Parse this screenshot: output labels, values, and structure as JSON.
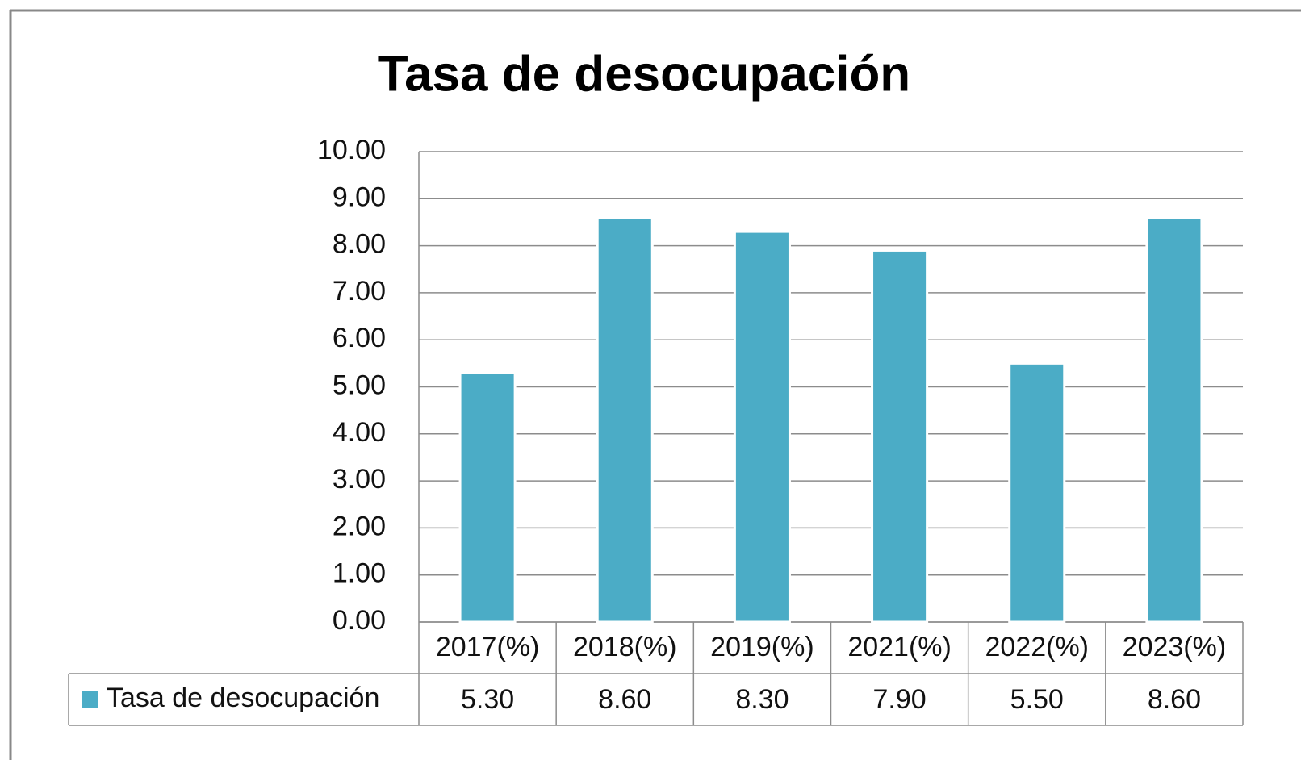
{
  "chart_data": {
    "type": "bar",
    "title": "Tasa de desocupación",
    "categories": [
      "2017(%)",
      "2018(%)",
      "2019(%)",
      "2021(%)",
      "2022(%)",
      "2023(%)"
    ],
    "series": [
      {
        "name": "Tasa de desocupación",
        "color": "#4bacc6",
        "values": [
          5.3,
          8.6,
          8.3,
          7.9,
          5.5,
          8.6
        ],
        "value_labels": [
          "5.30",
          "8.60",
          "8.30",
          "7.90",
          "5.50",
          "8.60"
        ]
      }
    ],
    "ylim": [
      0,
      10
    ],
    "yticks": [
      {
        "value": 0,
        "label": "0.00"
      },
      {
        "value": 1,
        "label": "1.00"
      },
      {
        "value": 2,
        "label": "2.00"
      },
      {
        "value": 3,
        "label": "3.00"
      },
      {
        "value": 4,
        "label": "4.00"
      },
      {
        "value": 5,
        "label": "5.00"
      },
      {
        "value": 6,
        "label": "6.00"
      },
      {
        "value": 7,
        "label": "7.00"
      },
      {
        "value": 8,
        "label": "8.00"
      },
      {
        "value": 9,
        "label": "9.00"
      },
      {
        "value": 10,
        "label": "10.00"
      }
    ],
    "grid": true
  }
}
